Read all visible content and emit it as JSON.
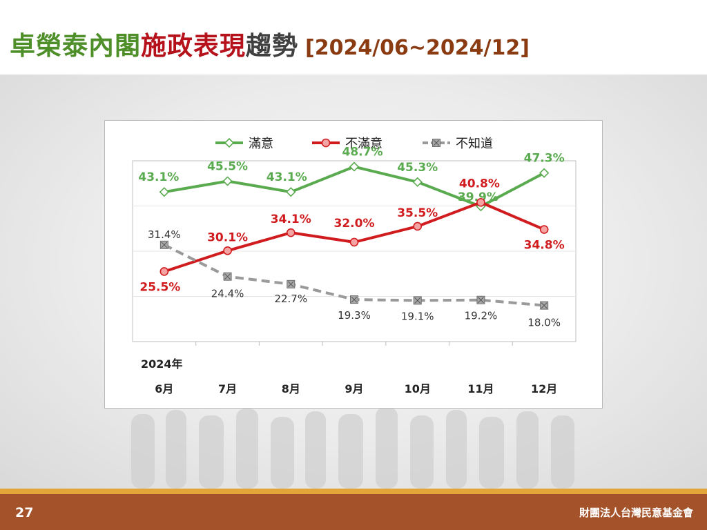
{
  "title": {
    "part1": "卓榮泰內閣",
    "part2": "施政表現",
    "part3": "趨勢",
    "range": "[2024/06~2024/12]"
  },
  "footer": {
    "page_number": "27",
    "organization": "財團法人台灣民意基金會"
  },
  "chart_data": {
    "type": "line",
    "year_label": "2024年",
    "categories": [
      "6月",
      "7月",
      "8月",
      "9月",
      "10月",
      "11月",
      "12月"
    ],
    "series": [
      {
        "name": "滿意",
        "values": [
          43.1,
          45.5,
          43.1,
          48.7,
          45.3,
          39.9,
          47.3
        ],
        "labels": [
          "43.1%",
          "45.5%",
          "43.1%",
          "48.7%",
          "45.3%",
          "39.9%",
          "47.3%"
        ],
        "color": "#5aaa4f",
        "marker": "diamond"
      },
      {
        "name": "不滿意",
        "values": [
          25.5,
          30.1,
          34.1,
          32.0,
          35.5,
          40.8,
          34.8
        ],
        "labels": [
          "25.5%",
          "30.1%",
          "34.1%",
          "32.0%",
          "35.5%",
          "40.8%",
          "34.8%"
        ],
        "color": "#d01c1f",
        "marker": "circle"
      },
      {
        "name": "不知道",
        "values": [
          31.4,
          24.4,
          22.7,
          19.3,
          19.1,
          19.2,
          18.0
        ],
        "labels": [
          "31.4%",
          "24.4%",
          "22.7%",
          "19.3%",
          "19.1%",
          "19.2%",
          "18.0%"
        ],
        "color": "#9a9a9a",
        "marker": "square-x",
        "dashed": true
      }
    ],
    "legend_position": "top-center",
    "grid": true
  }
}
